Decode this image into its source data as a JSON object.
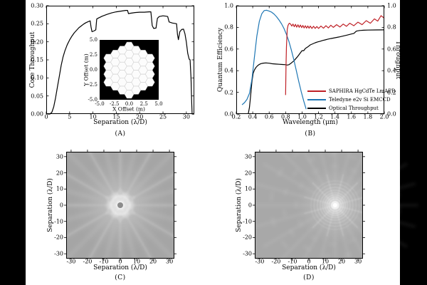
{
  "panels": {
    "a": {
      "caption": "(A)",
      "xlabel": "Separation (λ/D)",
      "ylabel": "Core Throughput",
      "xticks": [
        "0",
        "5",
        "10",
        "15",
        "20",
        "25",
        "30"
      ],
      "yticks": [
        "0.00",
        "0.05",
        "0.10",
        "0.15",
        "0.20",
        "0.25",
        "0.30"
      ],
      "inset": {
        "xlabel": "X Offset (m)",
        "ylabel": "Y Offset (m)",
        "xticks": [
          "-5.0",
          "-2.5",
          "0.0",
          "2.5",
          "5.0"
        ],
        "yticks": [
          "5.0",
          "2.5",
          "0.0",
          "-2.5",
          "-5.0"
        ],
        "segment_columns": [
          4,
          5,
          6,
          7,
          6,
          5,
          4
        ],
        "background": "#000000",
        "segment_color": "#fcfcfc"
      }
    },
    "b": {
      "caption": "(B)",
      "xlabel": "Wavelength (μm)",
      "ylabel_left": "Quantum Efficiency",
      "ylabel_right": "Throughput",
      "xticks": [
        "0.2",
        "0.4",
        "0.6",
        "0.8",
        "1.0",
        "1.2",
        "1.4",
        "1.6",
        "1.8",
        "2.0"
      ],
      "yticks": [
        "0.0",
        "0.2",
        "0.4",
        "0.6",
        "0.8",
        "1.0"
      ],
      "legend": [
        {
          "label": "SAPHIRA HgCdTe LmAPD",
          "color": "#bf2026"
        },
        {
          "label": "Teledyne e2v Si EMCCD",
          "color": "#1f77b4"
        },
        {
          "label": "Optical Throughput",
          "color": "#000000"
        }
      ]
    },
    "c": {
      "caption": "(C)",
      "xlabel": "Separation (λ/D)",
      "ylabel": "Separation (λ/D)",
      "xticks": [
        "-30",
        "-20",
        "-10",
        "0",
        "10",
        "20",
        "30"
      ],
      "yticks": [
        "30",
        "20",
        "10",
        "0",
        "-10",
        "-20",
        "-30"
      ]
    },
    "d": {
      "caption": "(D)",
      "xlabel": "Separation (λ/D)",
      "ylabel": "Separation (λ/D)",
      "xticks": [
        "-30",
        "-20",
        "-10",
        "0",
        "10",
        "20",
        "30"
      ],
      "yticks": [
        "30",
        "20",
        "10",
        "0",
        "-10",
        "-20",
        "-30"
      ]
    }
  },
  "chart_data": [
    {
      "panel": "A",
      "type": "line",
      "xlabel": "Separation (λ/D)",
      "ylabel": "Core Throughput",
      "xlim": [
        0,
        31.7
      ],
      "ylim": [
        0,
        0.3
      ],
      "line_color": "#000000",
      "points": [
        [
          0.3,
          0.0
        ],
        [
          0.8,
          0.0
        ],
        [
          1.2,
          0.005
        ],
        [
          1.6,
          0.02
        ],
        [
          2.0,
          0.045
        ],
        [
          2.4,
          0.075
        ],
        [
          2.8,
          0.105
        ],
        [
          3.2,
          0.135
        ],
        [
          3.6,
          0.158
        ],
        [
          4.0,
          0.175
        ],
        [
          4.5,
          0.192
        ],
        [
          5.0,
          0.205
        ],
        [
          5.5,
          0.216
        ],
        [
          6.0,
          0.225
        ],
        [
          6.5,
          0.232
        ],
        [
          7.0,
          0.239
        ],
        [
          7.5,
          0.244
        ],
        [
          8.0,
          0.249
        ],
        [
          8.5,
          0.253
        ],
        [
          9.0,
          0.256
        ],
        [
          9.4,
          0.258
        ],
        [
          9.6,
          0.24
        ],
        [
          9.8,
          0.228
        ],
        [
          10.2,
          0.23
        ],
        [
          10.6,
          0.233
        ],
        [
          10.8,
          0.263
        ],
        [
          11.2,
          0.266
        ],
        [
          12.0,
          0.271
        ],
        [
          13.0,
          0.276
        ],
        [
          14.0,
          0.28
        ],
        [
          15.0,
          0.283
        ],
        [
          16.0,
          0.285
        ],
        [
          17.0,
          0.287
        ],
        [
          17.4,
          0.287
        ],
        [
          17.6,
          0.278
        ],
        [
          18.0,
          0.279
        ],
        [
          19.0,
          0.281
        ],
        [
          20.0,
          0.282
        ],
        [
          21.0,
          0.282
        ],
        [
          22.0,
          0.283
        ],
        [
          22.4,
          0.283
        ],
        [
          22.7,
          0.245
        ],
        [
          23.0,
          0.237
        ],
        [
          23.5,
          0.238
        ],
        [
          23.8,
          0.265
        ],
        [
          24.2,
          0.27
        ],
        [
          25.0,
          0.272
        ],
        [
          25.6,
          0.271
        ],
        [
          26.0,
          0.27
        ],
        [
          26.3,
          0.255
        ],
        [
          27.0,
          0.252
        ],
        [
          27.9,
          0.25
        ],
        [
          28.1,
          0.22
        ],
        [
          28.3,
          0.206
        ],
        [
          28.6,
          0.228
        ],
        [
          29.0,
          0.234
        ],
        [
          29.4,
          0.235
        ],
        [
          29.7,
          0.222
        ],
        [
          30.0,
          0.2
        ],
        [
          30.3,
          0.168
        ],
        [
          30.6,
          0.152
        ],
        [
          30.8,
          0.15
        ],
        [
          31.0,
          0.1
        ],
        [
          31.15,
          0.03
        ],
        [
          31.25,
          0.0
        ],
        [
          31.7,
          0.0
        ]
      ]
    },
    {
      "panel": "B",
      "type": "line",
      "xlabel": "Wavelength (μm)",
      "ylabel_left": "Quantum Efficiency",
      "ylabel_right": "Throughput",
      "xlim": [
        0.2,
        2.0
      ],
      "ylim": [
        0,
        1.0
      ],
      "legend_position": "lower right",
      "series": [
        {
          "name": "SAPHIRA HgCdTe LmAPD",
          "color": "#bf2026",
          "points": [
            [
              0.8,
              0.175
            ],
            [
              0.805,
              0.45
            ],
            [
              0.81,
              0.62
            ],
            [
              0.82,
              0.78
            ],
            [
              0.83,
              0.82
            ],
            [
              0.845,
              0.838
            ],
            [
              0.86,
              0.83
            ],
            [
              0.875,
              0.812
            ],
            [
              0.89,
              0.83
            ],
            [
              0.905,
              0.806
            ],
            [
              0.92,
              0.828
            ],
            [
              0.935,
              0.802
            ],
            [
              0.95,
              0.824
            ],
            [
              0.965,
              0.8
            ],
            [
              0.98,
              0.822
            ],
            [
              0.995,
              0.798
            ],
            [
              1.01,
              0.818
            ],
            [
              1.025,
              0.795
            ],
            [
              1.04,
              0.815
            ],
            [
              1.055,
              0.793
            ],
            [
              1.07,
              0.813
            ],
            [
              1.085,
              0.792
            ],
            [
              1.1,
              0.812
            ],
            [
              1.12,
              0.79
            ],
            [
              1.14,
              0.81
            ],
            [
              1.16,
              0.79
            ],
            [
              1.18,
              0.808
            ],
            [
              1.2,
              0.79
            ],
            [
              1.23,
              0.812
            ],
            [
              1.26,
              0.792
            ],
            [
              1.29,
              0.815
            ],
            [
              1.32,
              0.795
            ],
            [
              1.35,
              0.82
            ],
            [
              1.38,
              0.8
            ],
            [
              1.42,
              0.825
            ],
            [
              1.46,
              0.803
            ],
            [
              1.5,
              0.83
            ],
            [
              1.54,
              0.81
            ],
            [
              1.58,
              0.838
            ],
            [
              1.63,
              0.815
            ],
            [
              1.68,
              0.848
            ],
            [
              1.73,
              0.825
            ],
            [
              1.78,
              0.862
            ],
            [
              1.83,
              0.838
            ],
            [
              1.88,
              0.878
            ],
            [
              1.92,
              0.858
            ],
            [
              1.96,
              0.908
            ],
            [
              2.0,
              0.885
            ]
          ]
        },
        {
          "name": "Teledyne e2v Si EMCCD",
          "color": "#1f77b4",
          "points": [
            [
              0.27,
              0.085
            ],
            [
              0.3,
              0.105
            ],
            [
              0.33,
              0.135
            ],
            [
              0.36,
              0.19
            ],
            [
              0.39,
              0.32
            ],
            [
              0.42,
              0.52
            ],
            [
              0.45,
              0.72
            ],
            [
              0.48,
              0.855
            ],
            [
              0.51,
              0.925
            ],
            [
              0.54,
              0.955
            ],
            [
              0.57,
              0.958
            ],
            [
              0.6,
              0.95
            ],
            [
              0.63,
              0.94
            ],
            [
              0.66,
              0.922
            ],
            [
              0.69,
              0.898
            ],
            [
              0.72,
              0.868
            ],
            [
              0.75,
              0.832
            ],
            [
              0.78,
              0.79
            ],
            [
              0.81,
              0.735
            ],
            [
              0.84,
              0.67
            ],
            [
              0.87,
              0.59
            ],
            [
              0.9,
              0.5
            ],
            [
              0.93,
              0.4
            ],
            [
              0.96,
              0.3
            ],
            [
              0.99,
              0.205
            ],
            [
              1.02,
              0.12
            ],
            [
              1.05,
              0.045
            ]
          ]
        },
        {
          "name": "Optical Throughput",
          "color": "#000000",
          "points": [
            [
              0.345,
              0.0
            ],
            [
              0.36,
              0.06
            ],
            [
              0.375,
              0.17
            ],
            [
              0.39,
              0.3
            ],
            [
              0.405,
              0.375
            ],
            [
              0.42,
              0.405
            ],
            [
              0.44,
              0.43
            ],
            [
              0.46,
              0.447
            ],
            [
              0.48,
              0.458
            ],
            [
              0.5,
              0.465
            ],
            [
              0.53,
              0.47
            ],
            [
              0.56,
              0.472
            ],
            [
              0.6,
              0.469
            ],
            [
              0.64,
              0.464
            ],
            [
              0.68,
              0.461
            ],
            [
              0.72,
              0.459
            ],
            [
              0.76,
              0.457
            ],
            [
              0.8,
              0.455
            ],
            [
              0.82,
              0.452
            ],
            [
              0.84,
              0.455
            ],
            [
              0.86,
              0.465
            ],
            [
              0.88,
              0.478
            ],
            [
              0.9,
              0.49
            ],
            [
              0.92,
              0.508
            ],
            [
              0.94,
              0.525
            ],
            [
              0.96,
              0.545
            ],
            [
              0.98,
              0.565
            ],
            [
              1.0,
              0.585
            ],
            [
              1.02,
              0.585
            ],
            [
              1.04,
              0.605
            ],
            [
              1.07,
              0.62
            ],
            [
              1.1,
              0.638
            ],
            [
              1.13,
              0.648
            ],
            [
              1.16,
              0.658
            ],
            [
              1.19,
              0.666
            ],
            [
              1.22,
              0.672
            ],
            [
              1.25,
              0.679
            ],
            [
              1.28,
              0.684
            ],
            [
              1.31,
              0.69
            ],
            [
              1.35,
              0.697
            ],
            [
              1.4,
              0.704
            ],
            [
              1.45,
              0.711
            ],
            [
              1.5,
              0.72
            ],
            [
              1.55,
              0.729
            ],
            [
              1.6,
              0.739
            ],
            [
              1.63,
              0.744
            ],
            [
              1.66,
              0.765
            ],
            [
              1.7,
              0.771
            ],
            [
              1.75,
              0.774
            ],
            [
              1.8,
              0.775
            ],
            [
              1.9,
              0.776
            ],
            [
              2.0,
              0.777
            ]
          ]
        }
      ]
    },
    {
      "panel": "C",
      "type": "heatmap",
      "xlabel": "Separation (λ/D)",
      "ylabel": "Separation (λ/D)",
      "xlim": [
        -33,
        33
      ],
      "ylim": [
        -33,
        33
      ],
      "background_gray": "#a5a5a5",
      "source_position": [
        0,
        0
      ],
      "description": "On-axis stellar PSF: hexagonal six-fold diffraction flower at center with darker core spot and faint radial streaks over mid-gray background"
    },
    {
      "panel": "D",
      "type": "heatmap",
      "xlabel": "Separation (λ/D)",
      "ylabel": "Separation (λ/D)",
      "xlim": [
        -33,
        33
      ],
      "ylim": [
        -33,
        33
      ],
      "background_gray": "#a8a8a8",
      "source_position": [
        16,
        0
      ],
      "description": "Off-axis companion PSF: bright white core at +16 λ/D with concentric Airy rings and radial spikes over mid-gray background"
    }
  ]
}
